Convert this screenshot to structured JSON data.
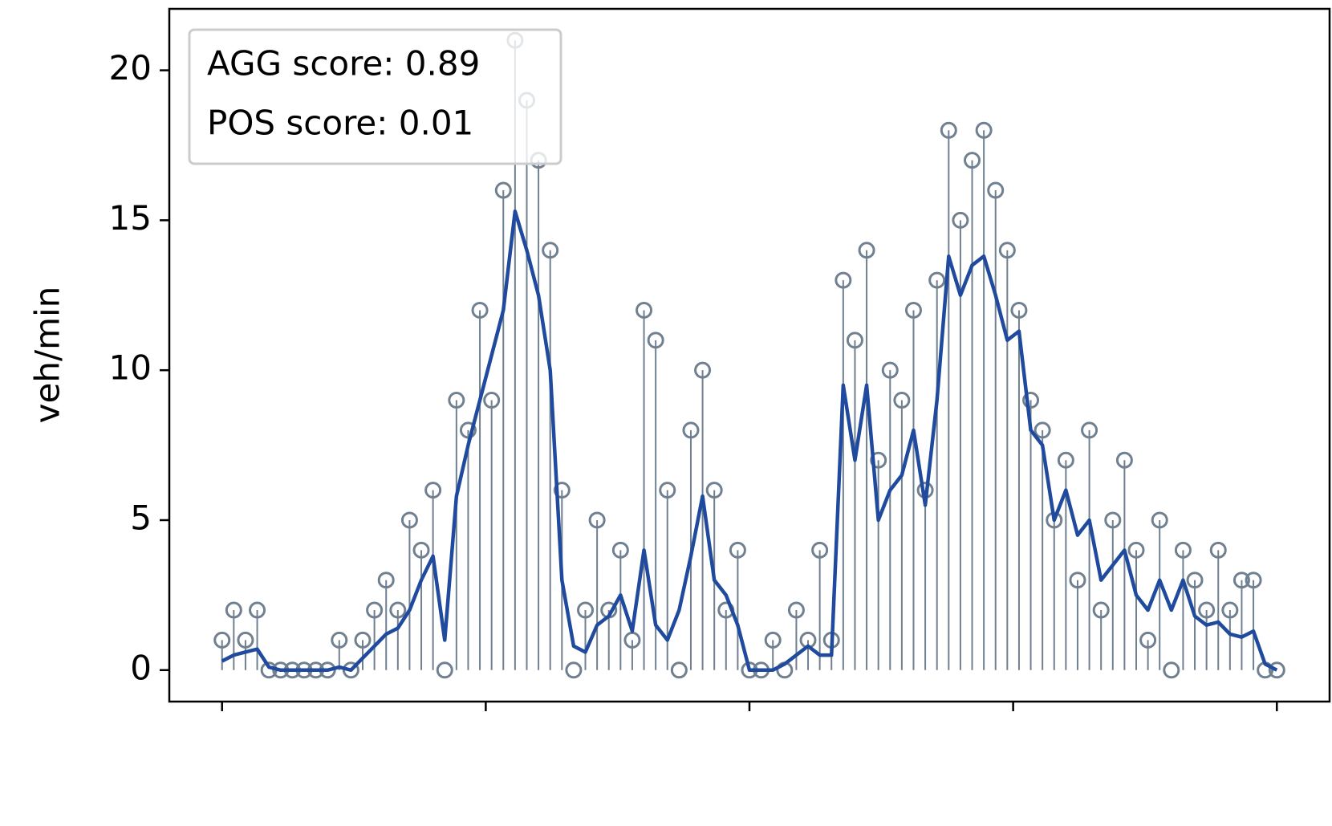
{
  "chart_data": {
    "type": "stem",
    "ylabel": "veh/min",
    "annotations": [
      "AGG score: 0.89",
      "POS score: 0.01"
    ],
    "x": [
      0,
      4,
      8,
      12,
      16,
      20,
      24,
      28,
      32,
      36,
      40,
      44,
      48,
      52,
      56,
      60,
      64,
      68,
      72,
      76,
      80,
      84,
      88,
      92,
      96,
      100,
      104,
      108,
      112,
      116,
      120,
      124,
      128,
      132,
      136,
      140,
      144,
      148,
      152,
      156,
      160,
      164,
      168,
      172,
      176,
      180,
      184,
      188,
      192,
      196,
      200,
      204,
      208,
      212,
      216,
      220,
      224,
      228,
      232,
      236,
      240,
      244,
      248,
      252,
      256,
      260,
      264,
      268,
      272,
      276,
      280,
      284,
      288,
      292,
      296,
      300,
      304,
      308,
      312,
      316,
      320,
      324,
      328,
      332,
      336,
      340,
      344,
      348,
      352,
      356,
      360
    ],
    "series": [
      {
        "type": "stem",
        "color": "#708090",
        "values": [
          1,
          2,
          1,
          2,
          0,
          0,
          0,
          0,
          0,
          0,
          1,
          0,
          1,
          2,
          3,
          2,
          5,
          4,
          6,
          0,
          9,
          8,
          12,
          9,
          16,
          21,
          19,
          17,
          14,
          6,
          0,
          2,
          5,
          2,
          4,
          1,
          12,
          11,
          6,
          0,
          8,
          10,
          6,
          2,
          4,
          0,
          0,
          1,
          0,
          2,
          1,
          4,
          1,
          13,
          11,
          14,
          7,
          10,
          9,
          12,
          6,
          13,
          18,
          15,
          17,
          18,
          16,
          14,
          12,
          9,
          8,
          5,
          7,
          3,
          8,
          2,
          5,
          7,
          4,
          1,
          5,
          0,
          4,
          3,
          2,
          4,
          2,
          3,
          3,
          0,
          0
        ]
      },
      {
        "type": "line",
        "color": "#1f4a9e",
        "values": [
          0.3,
          0.5,
          0.6,
          0.7,
          0.1,
          0,
          0,
          0,
          0,
          0,
          0.1,
          0,
          0.4,
          0.8,
          1.2,
          1.4,
          2,
          3,
          3.8,
          1,
          5.8,
          7.5,
          9,
          10.5,
          12,
          15.3,
          14,
          12.5,
          10,
          3,
          0.8,
          0.6,
          1.5,
          1.8,
          2.5,
          1.3,
          4,
          1.5,
          1,
          2,
          3.8,
          5.8,
          3,
          2.5,
          1.5,
          0,
          0,
          0,
          0.2,
          0.5,
          0.8,
          0.5,
          0.5,
          9.5,
          7,
          9.5,
          5,
          6,
          6.5,
          8,
          5.5,
          9,
          13.8,
          12.5,
          13.5,
          13.8,
          12.5,
          11,
          11.3,
          8,
          7.5,
          5,
          6,
          4.5,
          5,
          3,
          3.5,
          4,
          2.5,
          2,
          3,
          2,
          3,
          1.8,
          1.5,
          1.6,
          1.2,
          1.1,
          1.3,
          0.2,
          0
        ]
      }
    ],
    "xlim": [
      -18,
      378
    ],
    "xticks": [
      0,
      90,
      180,
      270,
      360
    ],
    "ylim": [
      -1.05,
      22.05
    ],
    "yticks": [
      0,
      5,
      10,
      15,
      20
    ]
  }
}
